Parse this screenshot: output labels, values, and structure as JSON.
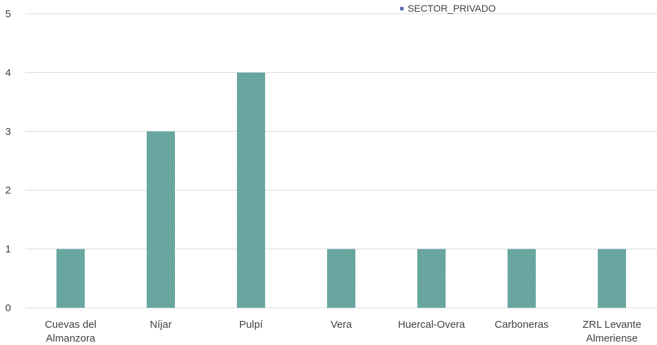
{
  "chart_data": {
    "type": "bar",
    "categories": [
      [
        "Cuevas del",
        "Almanzora"
      ],
      [
        "Níjar"
      ],
      [
        "Pulpí"
      ],
      [
        "Vera"
      ],
      [
        "Huercal-Overa"
      ],
      [
        "Carboneras"
      ],
      [
        "ZRL Levante",
        "Almeriense"
      ]
    ],
    "series": [
      {
        "name": "SECTOR_PRIVADO",
        "values": [
          1,
          3,
          4,
          1,
          1,
          1,
          1
        ],
        "color": "#6fa8a3",
        "legend_color": "#5b67b7"
      }
    ],
    "yticks": [
      "0",
      "1",
      "2",
      "3",
      "4",
      "5"
    ],
    "ylim": [
      0,
      5
    ],
    "grid": true,
    "legend_position": "top-right",
    "title": "",
    "xlabel": "",
    "ylabel": ""
  }
}
